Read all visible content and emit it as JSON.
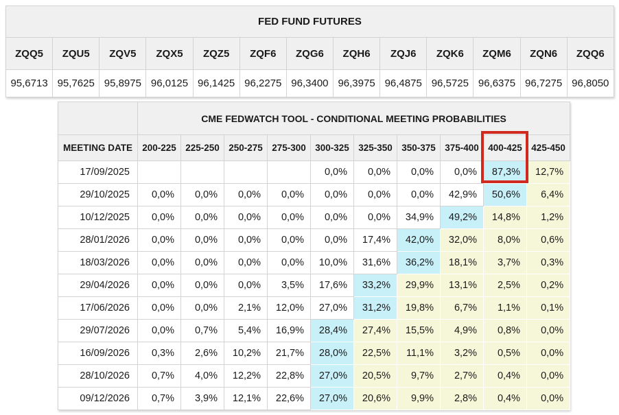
{
  "futures_table": {
    "title": "FED FUND FUTURES",
    "columns": [
      "ZQQ5",
      "ZQU5",
      "ZQV5",
      "ZQX5",
      "ZQZ5",
      "ZQF6",
      "ZQG6",
      "ZQH6",
      "ZQJ6",
      "ZQK6",
      "ZQM6",
      "ZQN6",
      "ZQQ6"
    ],
    "values": [
      "95,6713",
      "95,7625",
      "95,8975",
      "96,0125",
      "96,1425",
      "96,2275",
      "96,3400",
      "96,3975",
      "96,4875",
      "96,5725",
      "96,6375",
      "96,7275",
      "96,8050"
    ]
  },
  "fedwatch_table": {
    "title": "CME FEDWATCH TOOL - CONDITIONAL MEETING PROBABILITIES",
    "date_header": "MEETING DATE",
    "rate_columns": [
      "200-225",
      "225-250",
      "250-275",
      "275-300",
      "300-325",
      "325-350",
      "350-375",
      "375-400",
      "400-425",
      "425-450"
    ],
    "highlighted_column": "400-425",
    "rows": [
      {
        "date": "17/09/2025",
        "values": [
          "",
          "",
          "",
          "",
          "0,0%",
          "0,0%",
          "0,0%",
          "0,0%",
          "87,3%",
          "12,7%"
        ],
        "highlights": [
          "",
          "",
          "",
          "",
          "",
          "",
          "",
          "",
          "cyan",
          "yellow"
        ]
      },
      {
        "date": "29/10/2025",
        "values": [
          "0,0%",
          "0,0%",
          "0,0%",
          "0,0%",
          "0,0%",
          "0,0%",
          "0,0%",
          "42,9%",
          "50,6%",
          "6,4%"
        ],
        "highlights": [
          "",
          "",
          "",
          "",
          "",
          "",
          "",
          "",
          "cyan",
          "yellow"
        ]
      },
      {
        "date": "10/12/2025",
        "values": [
          "0,0%",
          "0,0%",
          "0,0%",
          "0,0%",
          "0,0%",
          "0,0%",
          "34,9%",
          "49,2%",
          "14,8%",
          "1,2%"
        ],
        "highlights": [
          "",
          "",
          "",
          "",
          "",
          "",
          "",
          "cyan",
          "yellow",
          "yellow"
        ]
      },
      {
        "date": "28/01/2026",
        "values": [
          "0,0%",
          "0,0%",
          "0,0%",
          "0,0%",
          "0,0%",
          "17,4%",
          "42,0%",
          "32,0%",
          "8,0%",
          "0,6%"
        ],
        "highlights": [
          "",
          "",
          "",
          "",
          "",
          "",
          "cyan",
          "yellow",
          "yellow",
          "yellow"
        ]
      },
      {
        "date": "18/03/2026",
        "values": [
          "0,0%",
          "0,0%",
          "0,0%",
          "0,0%",
          "10,0%",
          "31,6%",
          "36,2%",
          "18,1%",
          "3,7%",
          "0,3%"
        ],
        "highlights": [
          "",
          "",
          "",
          "",
          "",
          "",
          "cyan",
          "yellow",
          "yellow",
          "yellow"
        ]
      },
      {
        "date": "29/04/2026",
        "values": [
          "0,0%",
          "0,0%",
          "0,0%",
          "3,5%",
          "17,6%",
          "33,2%",
          "29,9%",
          "13,1%",
          "2,5%",
          "0,2%"
        ],
        "highlights": [
          "",
          "",
          "",
          "",
          "",
          "cyan",
          "yellow",
          "yellow",
          "yellow",
          "yellow"
        ]
      },
      {
        "date": "17/06/2026",
        "values": [
          "0,0%",
          "0,0%",
          "2,1%",
          "12,0%",
          "27,0%",
          "31,2%",
          "19,8%",
          "6,7%",
          "1,1%",
          "0,1%"
        ],
        "highlights": [
          "",
          "",
          "",
          "",
          "",
          "cyan",
          "yellow",
          "yellow",
          "yellow",
          "yellow"
        ]
      },
      {
        "date": "29/07/2026",
        "values": [
          "0,0%",
          "0,7%",
          "5,4%",
          "16,9%",
          "28,4%",
          "27,4%",
          "15,5%",
          "4,9%",
          "0,8%",
          "0,0%"
        ],
        "highlights": [
          "",
          "",
          "",
          "",
          "cyan",
          "yellow",
          "yellow",
          "yellow",
          "yellow",
          "yellow"
        ]
      },
      {
        "date": "16/09/2026",
        "values": [
          "0,3%",
          "2,6%",
          "10,2%",
          "21,7%",
          "28,0%",
          "22,5%",
          "11,1%",
          "3,2%",
          "0,5%",
          "0,0%"
        ],
        "highlights": [
          "",
          "",
          "",
          "",
          "cyan",
          "yellow",
          "yellow",
          "yellow",
          "yellow",
          "yellow"
        ]
      },
      {
        "date": "28/10/2026",
        "values": [
          "0,7%",
          "4,0%",
          "12,2%",
          "22,8%",
          "27,0%",
          "20,5%",
          "9,7%",
          "2,7%",
          "0,4%",
          "0,0%"
        ],
        "highlights": [
          "",
          "",
          "",
          "",
          "cyan",
          "yellow",
          "yellow",
          "yellow",
          "yellow",
          "yellow"
        ]
      },
      {
        "date": "09/12/2026",
        "values": [
          "0,7%",
          "3,9%",
          "12,1%",
          "22,6%",
          "27,0%",
          "20,6%",
          "9,9%",
          "2,8%",
          "0,4%",
          "0,0%"
        ],
        "highlights": [
          "",
          "",
          "",
          "",
          "cyan",
          "yellow",
          "yellow",
          "yellow",
          "yellow",
          "yellow"
        ]
      }
    ]
  },
  "colors": {
    "header_bg": "#f0f0f0",
    "border": "#d3d3d3",
    "cyan_highlight": "#c8f0f8",
    "yellow_highlight": "#f6f6d8",
    "red_box": "#d02920"
  }
}
